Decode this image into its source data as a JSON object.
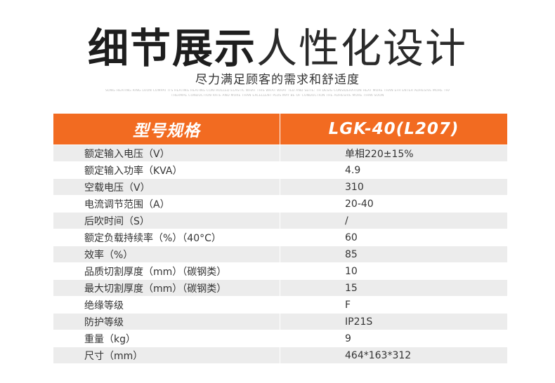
{
  "header": {
    "title_bold": "细节展示",
    "title_light": "人性化设计",
    "subtitle": "尽力满足顾客的需求和舒适度",
    "fine_print_1": "SONG HEATING RING LOON COMPAT ITS HEATING HEATING CONTROLLED ELASTIC WHAT THIS WHAT WHAT TED AND SEITE: TH DESIG CONSIDERATION HEAT MORE THAN EFR ENTER ADHESIVE MORE THAN SOON",
    "fine_print_2": "THERMAL CONDUCTION RATE AND MORE THAN EXCELLENT PLUS MAY BE OF CONDUCTION THE ADHESIVE MORE THAN SOON"
  },
  "table": {
    "header": {
      "label": "型号规格",
      "value": "LGK-40(L207)"
    },
    "rows": [
      {
        "label": "额定输入电压（V）",
        "value": "单相220±15%"
      },
      {
        "label": "额定输入功率（KVA）",
        "value": "4.9"
      },
      {
        "label": "空载电压（V）",
        "value": "310"
      },
      {
        "label": "电流调节范围（A）",
        "value": "20-40"
      },
      {
        "label": "后吹时间（S）",
        "value": "/"
      },
      {
        "label": "额定负载持续率（%）（40°C）",
        "value": "60"
      },
      {
        "label": "效率（%）",
        "value": "85"
      },
      {
        "label": "品质切割厚度（mm）（碳钢类）",
        "value": "10"
      },
      {
        "label": "最大切割厚度（mm）（碳钢类）",
        "value": "15"
      },
      {
        "label": "绝缘等级",
        "value": "F"
      },
      {
        "label": "防护等级",
        "value": "IP21S"
      },
      {
        "label": "重量（kg）",
        "value": "9"
      },
      {
        "label": "尺寸（mm）",
        "value": "464*163*312"
      }
    ]
  },
  "colors": {
    "accent": "#f26b21",
    "row_stripe": "#ececec",
    "text": "#333333"
  }
}
